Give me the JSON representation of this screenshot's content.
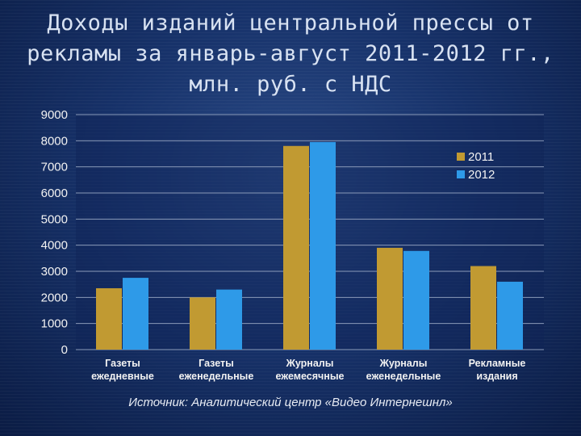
{
  "title": "Доходы изданий центральной прессы от рекламы за январь-август 2011-2012 гг., млн. руб. с НДС",
  "source": "Источник: Аналитический центр «Видео Интернешнл»",
  "colors": {
    "series_2011": "#c19a32",
    "series_2012": "#2e9ae8",
    "axis_text": "#f2f2f2",
    "grid": "#8a9ab8",
    "plot_bg": "#0f2457"
  },
  "chart_data": {
    "type": "bar",
    "categories": [
      [
        "Газеты",
        "ежедневные"
      ],
      [
        "Газеты",
        "еженедельные"
      ],
      [
        "Журналы",
        "ежемесячные"
      ],
      [
        "Журналы",
        "еженедельные"
      ],
      [
        "Рекламные",
        "издания"
      ]
    ],
    "series": [
      {
        "name": "2011",
        "values": [
          2350,
          2000,
          7800,
          3900,
          3200
        ]
      },
      {
        "name": "2012",
        "values": [
          2750,
          2300,
          7950,
          3780,
          2600
        ]
      }
    ],
    "ylim": [
      0,
      9000
    ],
    "yticks": [
      0,
      1000,
      2000,
      3000,
      4000,
      5000,
      6000,
      7000,
      8000,
      9000
    ],
    "grid": true,
    "legend": "right"
  }
}
